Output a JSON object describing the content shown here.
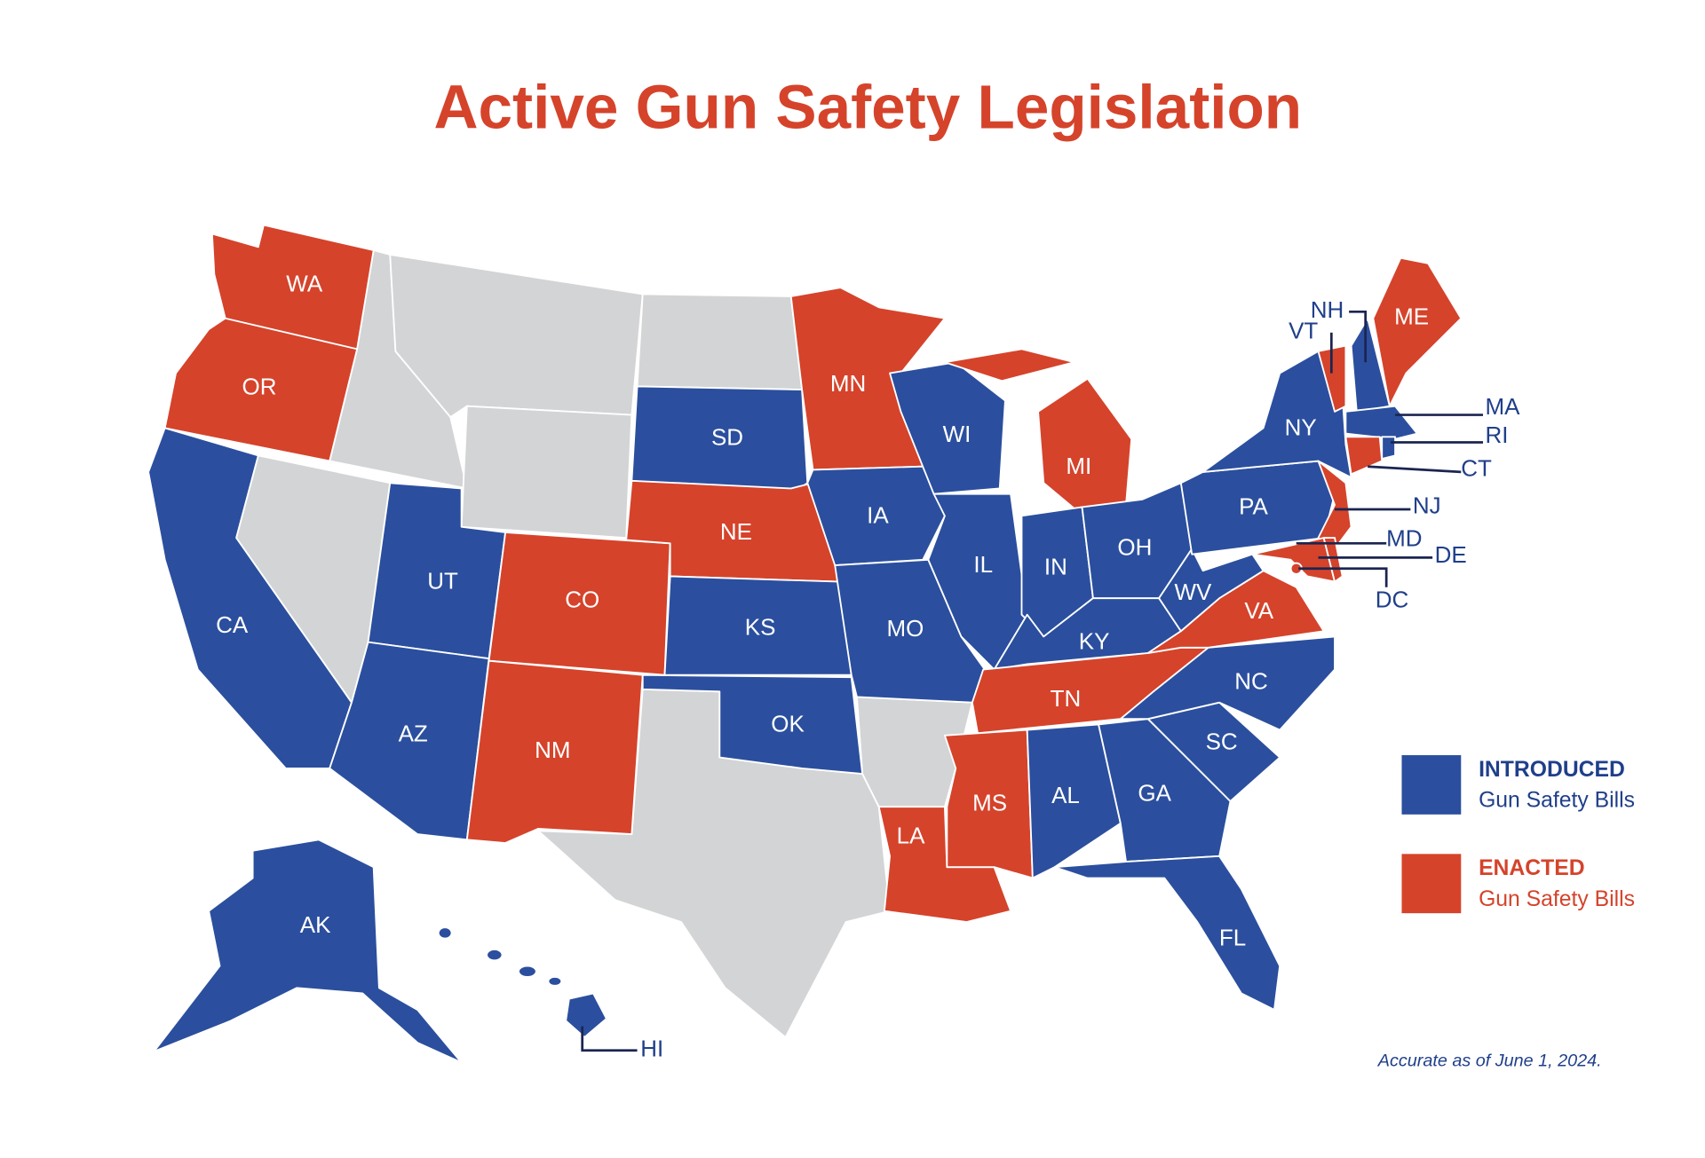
{
  "title": "Active Gun Safety Legislation",
  "states": [
    {
      "label": "WA",
      "color": "#d5432b"
    },
    {
      "label": "OR",
      "color": "#d5432b"
    },
    {
      "label": "CA",
      "color": "#2b4f9e"
    },
    {
      "label": "UT",
      "color": "#2b4f9e"
    },
    {
      "label": "AZ",
      "color": "#2b4f9e"
    },
    {
      "label": "CO",
      "color": "#d5432b"
    },
    {
      "label": "NM",
      "color": "#d5432b"
    },
    {
      "label": "SD",
      "color": "#2b4f9e"
    },
    {
      "label": "NE",
      "color": "#d5432b"
    },
    {
      "label": "KS",
      "color": "#2b4f9e"
    },
    {
      "label": "OK",
      "color": "#2b4f9e"
    },
    {
      "label": "MN",
      "color": "#d5432b"
    },
    {
      "label": "IA",
      "color": "#2b4f9e"
    },
    {
      "label": "MO",
      "color": "#2b4f9e"
    },
    {
      "label": "LA",
      "color": "#d5432b"
    },
    {
      "label": "WI",
      "color": "#2b4f9e"
    },
    {
      "label": "IL",
      "color": "#2b4f9e"
    },
    {
      "label": "MI",
      "color": "#d5432b"
    },
    {
      "label": "IN",
      "color": "#2b4f9e"
    },
    {
      "label": "OH",
      "color": "#2b4f9e"
    },
    {
      "label": "KY",
      "color": "#2b4f9e"
    },
    {
      "label": "TN",
      "color": "#d5432b"
    },
    {
      "label": "MS",
      "color": "#d5432b"
    },
    {
      "label": "AL",
      "color": "#2b4f9e"
    },
    {
      "label": "GA",
      "color": "#2b4f9e"
    },
    {
      "label": "FL",
      "color": "#2b4f9e"
    },
    {
      "label": "SC",
      "color": "#2b4f9e"
    },
    {
      "label": "NC",
      "color": "#2b4f9e"
    },
    {
      "label": "VA",
      "color": "#d5432b"
    },
    {
      "label": "WV",
      "color": "#2b4f9e"
    },
    {
      "label": "PA",
      "color": "#2b4f9e"
    },
    {
      "label": "NY",
      "color": "#2b4f9e"
    },
    {
      "label": "NJ",
      "color": "#d5432b"
    },
    {
      "label": "MD",
      "color": "#d5432b"
    },
    {
      "label": "DE",
      "color": "#d5432b"
    },
    {
      "label": "DC",
      "color": "#d5432b"
    },
    {
      "label": "VT",
      "color": "#d5432b"
    },
    {
      "label": "NH",
      "color": "#2b4f9e"
    },
    {
      "label": "ME",
      "color": "#d5432b"
    },
    {
      "label": "MA",
      "color": "#2b4f9e"
    },
    {
      "label": "RI",
      "color": "#2b4f9e"
    },
    {
      "label": "CT",
      "color": "#d5432b"
    },
    {
      "label": "AK",
      "color": "#2b4f9e"
    },
    {
      "label": "HI",
      "color": "#2b4f9e"
    }
  ],
  "legend": [
    {
      "title": "INTRODUCED",
      "subtitle": "Gun Safety Bills",
      "color": "#2b4f9e"
    },
    {
      "title": "ENACTED",
      "subtitle": "Gun Safety Bills",
      "color": "#d5432b"
    }
  ],
  "note": "Accurate as of June  1, 2024."
}
